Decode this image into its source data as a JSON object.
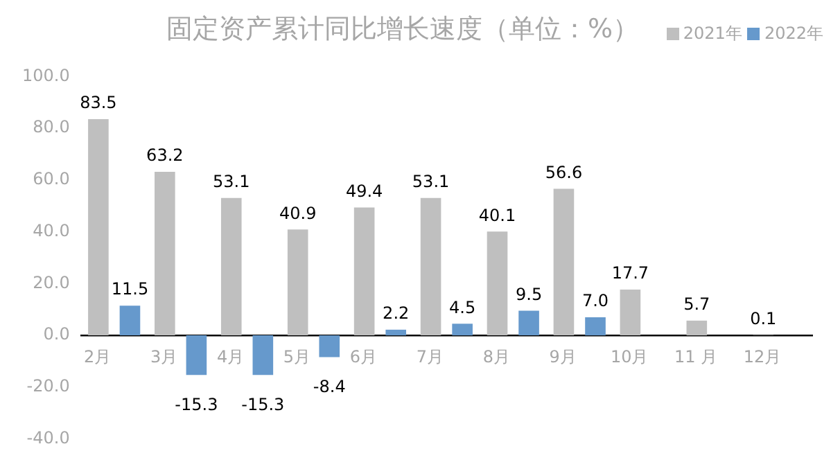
{
  "chart_data": {
    "type": "bar",
    "title": "固定资产累计同比增长速度（单位：%）",
    "categories": [
      "2月",
      "3月",
      "4月",
      "5月",
      "6月",
      "7月",
      "8月",
      "9月",
      "10月",
      "11 月",
      "12月"
    ],
    "series": [
      {
        "name": "2021年",
        "color": "#bfbfbf",
        "values": [
          83.5,
          63.2,
          53.1,
          40.9,
          49.4,
          53.1,
          40.1,
          56.6,
          17.7,
          5.7,
          0.1
        ],
        "value_labels": [
          "83.5",
          "63.2",
          "53.1",
          "40.9",
          "49.4",
          "53.1",
          "40.1",
          "56.6",
          "17.7",
          "5.7",
          "0.1"
        ]
      },
      {
        "name": "2022年",
        "color": "#6699cc",
        "values": [
          11.5,
          -15.3,
          -15.3,
          -8.4,
          2.2,
          4.5,
          9.5,
          7.0,
          null,
          null,
          null
        ],
        "value_labels": [
          "11.5",
          "-15.3",
          "-15.3",
          "-8.4",
          "2.2",
          "4.5",
          "9.5",
          "7.0",
          null,
          null,
          null
        ]
      }
    ],
    "ylim": [
      -40,
      100
    ],
    "yticks": [
      {
        "value": -40,
        "label": "-40.0"
      },
      {
        "value": -20,
        "label": "-20.0"
      },
      {
        "value": 0,
        "label": "0.0"
      },
      {
        "value": 20,
        "label": "20.0"
      },
      {
        "value": 40,
        "label": "40.0"
      },
      {
        "value": 60,
        "label": "60.0"
      },
      {
        "value": 80,
        "label": "80.0"
      },
      {
        "value": 100,
        "label": "100.0"
      }
    ],
    "grid": false,
    "legend": "top right"
  }
}
